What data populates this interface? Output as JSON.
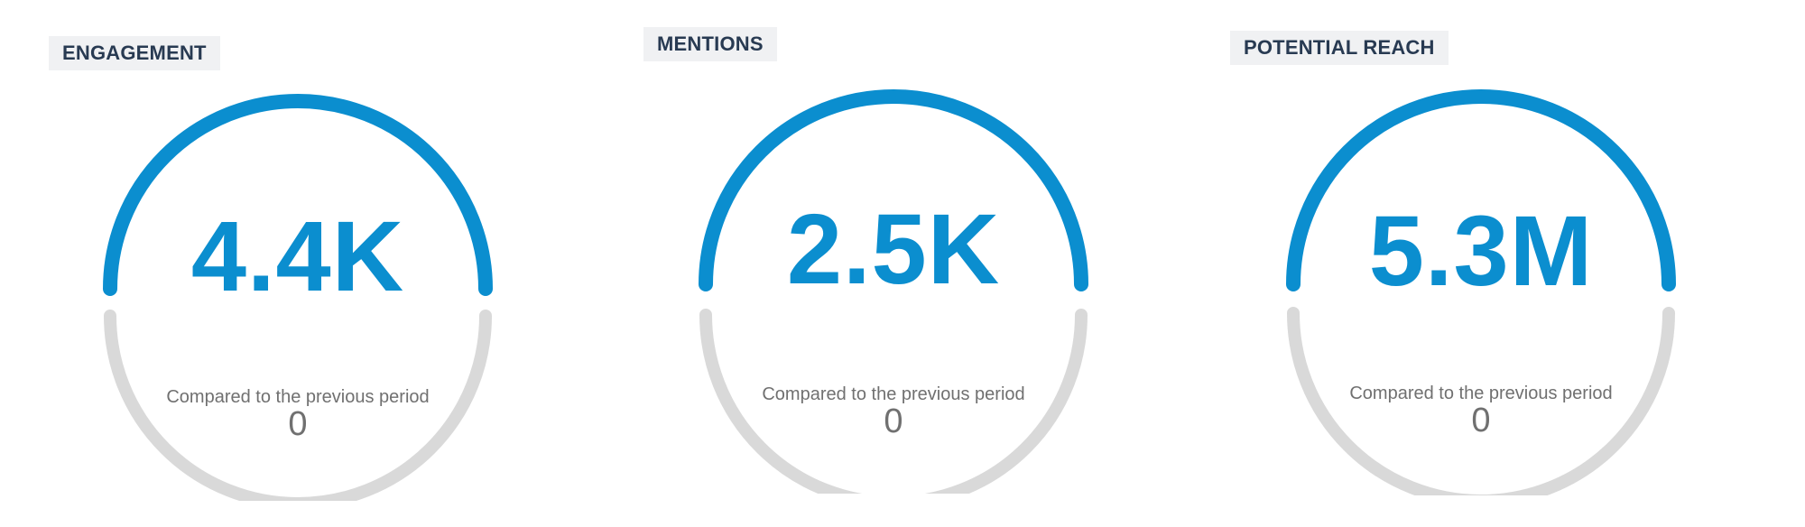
{
  "colors": {
    "accent": "#0b8ecf",
    "track": "#d9d9d9",
    "title_bg": "#f0f1f3",
    "title_text": "#283a52",
    "muted_text": "#707070"
  },
  "metrics": [
    {
      "title": "ENGAGEMENT",
      "value": "4.4K",
      "compare_label": "Compared to the previous period",
      "compare_value": "0"
    },
    {
      "title": "MENTIONS",
      "value": "2.5K",
      "compare_label": "Compared to the previous period",
      "compare_value": "0"
    },
    {
      "title": "POTENTIAL REACH",
      "value": "5.3M",
      "compare_label": "Compared to the previous period",
      "compare_value": "0"
    }
  ]
}
